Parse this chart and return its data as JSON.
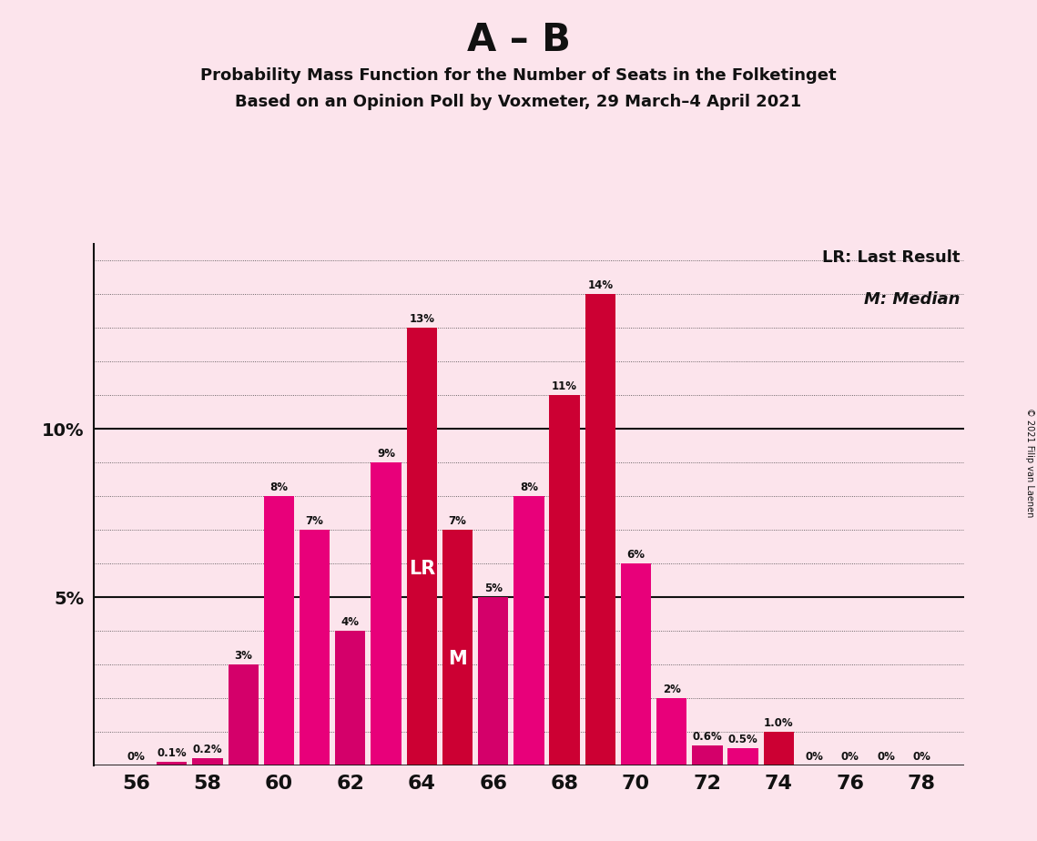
{
  "title_main": "A – B",
  "title_line1": "Probability Mass Function for the Number of Seats in the Folketinget",
  "title_line2": "Based on an Opinion Poll by Voxmeter, 29 March–4 April 2021",
  "copyright": "© 2021 Filip van Laenen",
  "legend_lr": "LR: Last Result",
  "legend_m": "M: Median",
  "seats": [
    56,
    57,
    58,
    59,
    60,
    61,
    62,
    63,
    64,
    65,
    66,
    67,
    68,
    69,
    70,
    71,
    72,
    73,
    74,
    75,
    76,
    77,
    78
  ],
  "values": [
    0.0,
    0.001,
    0.002,
    0.03,
    0.08,
    0.07,
    0.04,
    0.09,
    0.13,
    0.07,
    0.05,
    0.08,
    0.11,
    0.14,
    0.06,
    0.02,
    0.006,
    0.005,
    0.01,
    0.0,
    0.0,
    0.0,
    0.0
  ],
  "labels": [
    "0%",
    "0.1%",
    "0.2%",
    "3%",
    "8%",
    "7%",
    "4%",
    "9%",
    "13%",
    "7%",
    "5%",
    "8%",
    "11%",
    "14%",
    "6%",
    "2%",
    "0.6%",
    "0.5%",
    "1.0%",
    "0%",
    "0%",
    "0%",
    "0%"
  ],
  "bar_colors": [
    "#d4006a",
    "#d4006a",
    "#d4006a",
    "#d4006a",
    "#e8007a",
    "#e8007a",
    "#d4006a",
    "#e8007a",
    "#cc0033",
    "#cc0033",
    "#d4006a",
    "#e8007a",
    "#cc0033",
    "#cc0033",
    "#e8007a",
    "#e8007a",
    "#d4006a",
    "#e8007a",
    "#cc0033",
    "#d4006a",
    "#d4006a",
    "#d4006a",
    "#d4006a"
  ],
  "lr_seat": 64,
  "median_seat": 65,
  "background_color": "#fce4ec",
  "ytick_positions": [
    0.0,
    0.05,
    0.1
  ],
  "ytick_labels": [
    "",
    "5%",
    "10%"
  ],
  "ymax": 0.155,
  "xlabel_ticks": [
    56,
    58,
    60,
    62,
    64,
    66,
    68,
    70,
    72,
    74,
    76,
    78
  ],
  "grid_lines": [
    0.01,
    0.02,
    0.03,
    0.04,
    0.05,
    0.06,
    0.07,
    0.08,
    0.09,
    0.1,
    0.11,
    0.12,
    0.13,
    0.14,
    0.15
  ]
}
